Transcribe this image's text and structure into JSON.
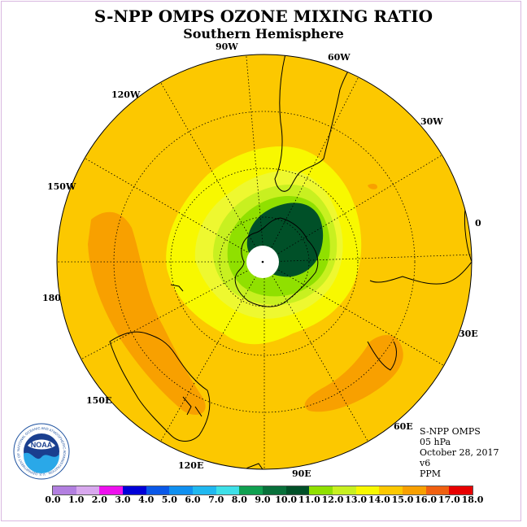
{
  "title": "S-NPP OMPS OZONE MIXING RATIO",
  "subtitle": "Southern Hemisphere",
  "longitude_labels": {
    "lon_90w": "90W",
    "lon_60w": "60W",
    "lon_120w": "120W",
    "lon_30w": "30W",
    "lon_150w": "150W",
    "lon_0": "0",
    "lon_180": "180",
    "lon_30e": "30E",
    "lon_150e": "150E",
    "lon_60e": "60E",
    "lon_120e": "120E",
    "lon_90e": "90E"
  },
  "info": {
    "instrument": "S-NPP OMPS",
    "level": "05 hPa",
    "date": "October 28, 2017",
    "version": "v6",
    "units": "PPM"
  },
  "logo": {
    "text": "NOAA",
    "ring_text": "NATIONAL OCEANIC AND ATMOSPHERIC ADMINISTRATION · U.S. DEPARTMENT OF COMMERCE"
  },
  "colorbar": {
    "ticks": [
      "0.0",
      "1.0",
      "2.0",
      "3.0",
      "4.0",
      "5.0",
      "6.0",
      "7.0",
      "8.0",
      "9.0",
      "10.0",
      "11.0",
      "12.0",
      "13.0",
      "14.0",
      "15.0",
      "16.0",
      "17.0",
      "18.0"
    ],
    "colors": [
      "#b27fe0",
      "#d8a8ee",
      "#ee10ee",
      "#0000d8",
      "#0a58e8",
      "#1090f0",
      "#20b8f0",
      "#3ee0e8",
      "#10a050",
      "#08703a",
      "#005028",
      "#90e000",
      "#c8f020",
      "#f8f800",
      "#fcc800",
      "#f8a000",
      "#f06010",
      "#e80000",
      "#7a4a2a"
    ]
  },
  "colors": {
    "background_field": "#fcc800",
    "band_orange": "#f8a000",
    "band_yellow": "#f8f800",
    "band_lightyellow": "#eef830",
    "band_lime": "#c8f020",
    "band_green": "#90e000",
    "band_darkgreen": "#005028"
  }
}
